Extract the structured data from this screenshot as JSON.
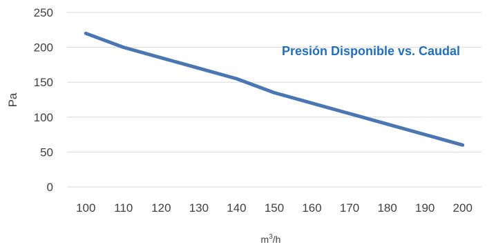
{
  "chart_data": {
    "type": "line",
    "title": "Presión Disponible vs. Caudal",
    "xlabel": "m3/h",
    "xlabel_base": "m",
    "xlabel_sup": "3",
    "xlabel_rest": "/h",
    "ylabel": "Pa",
    "x": [
      100,
      110,
      120,
      130,
      140,
      150,
      160,
      170,
      180,
      190,
      200
    ],
    "series": [
      {
        "values": [
          220,
          200,
          185,
          170,
          155,
          135,
          120,
          105,
          90,
          75,
          60
        ]
      }
    ],
    "ylim": [
      0,
      250
    ],
    "yticks": [
      0,
      50,
      100,
      150,
      200,
      250
    ],
    "xticks": [
      100,
      110,
      120,
      130,
      140,
      150,
      160,
      170,
      180,
      190,
      200
    ],
    "grid": true,
    "colors": {
      "line": "#4A77B4",
      "title": "#1F6FC5",
      "grid": "#D9D9D9",
      "text": "#404040"
    }
  }
}
